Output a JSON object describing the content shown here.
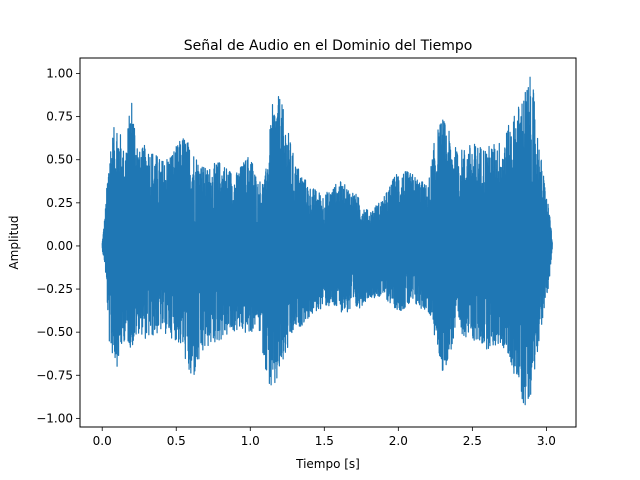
{
  "chart_data": {
    "type": "line",
    "title": "Señal de Audio en el Dominio del Tiempo",
    "xlabel": "Tiempo [s]",
    "ylabel": "Amplitud",
    "xlim": [
      -0.15,
      3.2
    ],
    "ylim": [
      -1.05,
      1.09
    ],
    "xticks": [
      0.0,
      0.5,
      1.0,
      1.5,
      2.0,
      2.5,
      3.0
    ],
    "xtick_labels": [
      "0.0",
      "0.5",
      "1.0",
      "1.5",
      "2.0",
      "2.5",
      "3.0"
    ],
    "yticks": [
      -1.0,
      -0.75,
      -0.5,
      -0.25,
      0.0,
      0.25,
      0.5,
      0.75,
      1.0
    ],
    "ytick_labels": [
      "−1.00",
      "−0.75",
      "−0.50",
      "−0.25",
      "0.00",
      "0.25",
      "0.50",
      "0.75",
      "1.00"
    ],
    "grid": false,
    "color": "#1f77b4",
    "series": [
      {
        "duration": 3.04,
        "envelope": {
          "t": [
            0.0,
            0.02,
            0.05,
            0.1,
            0.15,
            0.2,
            0.25,
            0.3,
            0.4,
            0.5,
            0.55,
            0.6,
            0.7,
            0.8,
            0.9,
            1.0,
            1.05,
            1.1,
            1.15,
            1.2,
            1.3,
            1.4,
            1.5,
            1.6,
            1.7,
            1.8,
            1.9,
            2.0,
            2.1,
            2.2,
            2.25,
            2.3,
            2.4,
            2.5,
            2.6,
            2.7,
            2.8,
            2.85,
            2.9,
            2.95,
            3.0,
            3.02,
            3.04
          ],
          "max": [
            0.02,
            0.2,
            0.6,
            0.75,
            0.55,
            0.88,
            0.55,
            0.6,
            0.5,
            0.58,
            0.65,
            0.58,
            0.45,
            0.5,
            0.42,
            0.55,
            0.38,
            0.4,
            0.82,
            0.88,
            0.5,
            0.35,
            0.3,
            0.38,
            0.32,
            0.2,
            0.28,
            0.45,
            0.42,
            0.35,
            0.65,
            0.75,
            0.55,
            0.6,
            0.58,
            0.62,
            0.8,
            0.9,
            1.0,
            0.6,
            0.3,
            0.22,
            0.02
          ],
          "min": [
            -0.02,
            -0.12,
            -0.6,
            -0.7,
            -0.55,
            -0.6,
            -0.5,
            -0.55,
            -0.5,
            -0.55,
            -0.62,
            -0.82,
            -0.6,
            -0.55,
            -0.5,
            -0.52,
            -0.45,
            -0.7,
            -0.9,
            -0.75,
            -0.5,
            -0.42,
            -0.35,
            -0.38,
            -0.4,
            -0.3,
            -0.3,
            -0.38,
            -0.35,
            -0.38,
            -0.55,
            -0.75,
            -0.5,
            -0.55,
            -0.6,
            -0.58,
            -0.78,
            -0.95,
            -0.85,
            -0.55,
            -0.32,
            -0.2,
            -0.02
          ]
        }
      }
    ]
  }
}
